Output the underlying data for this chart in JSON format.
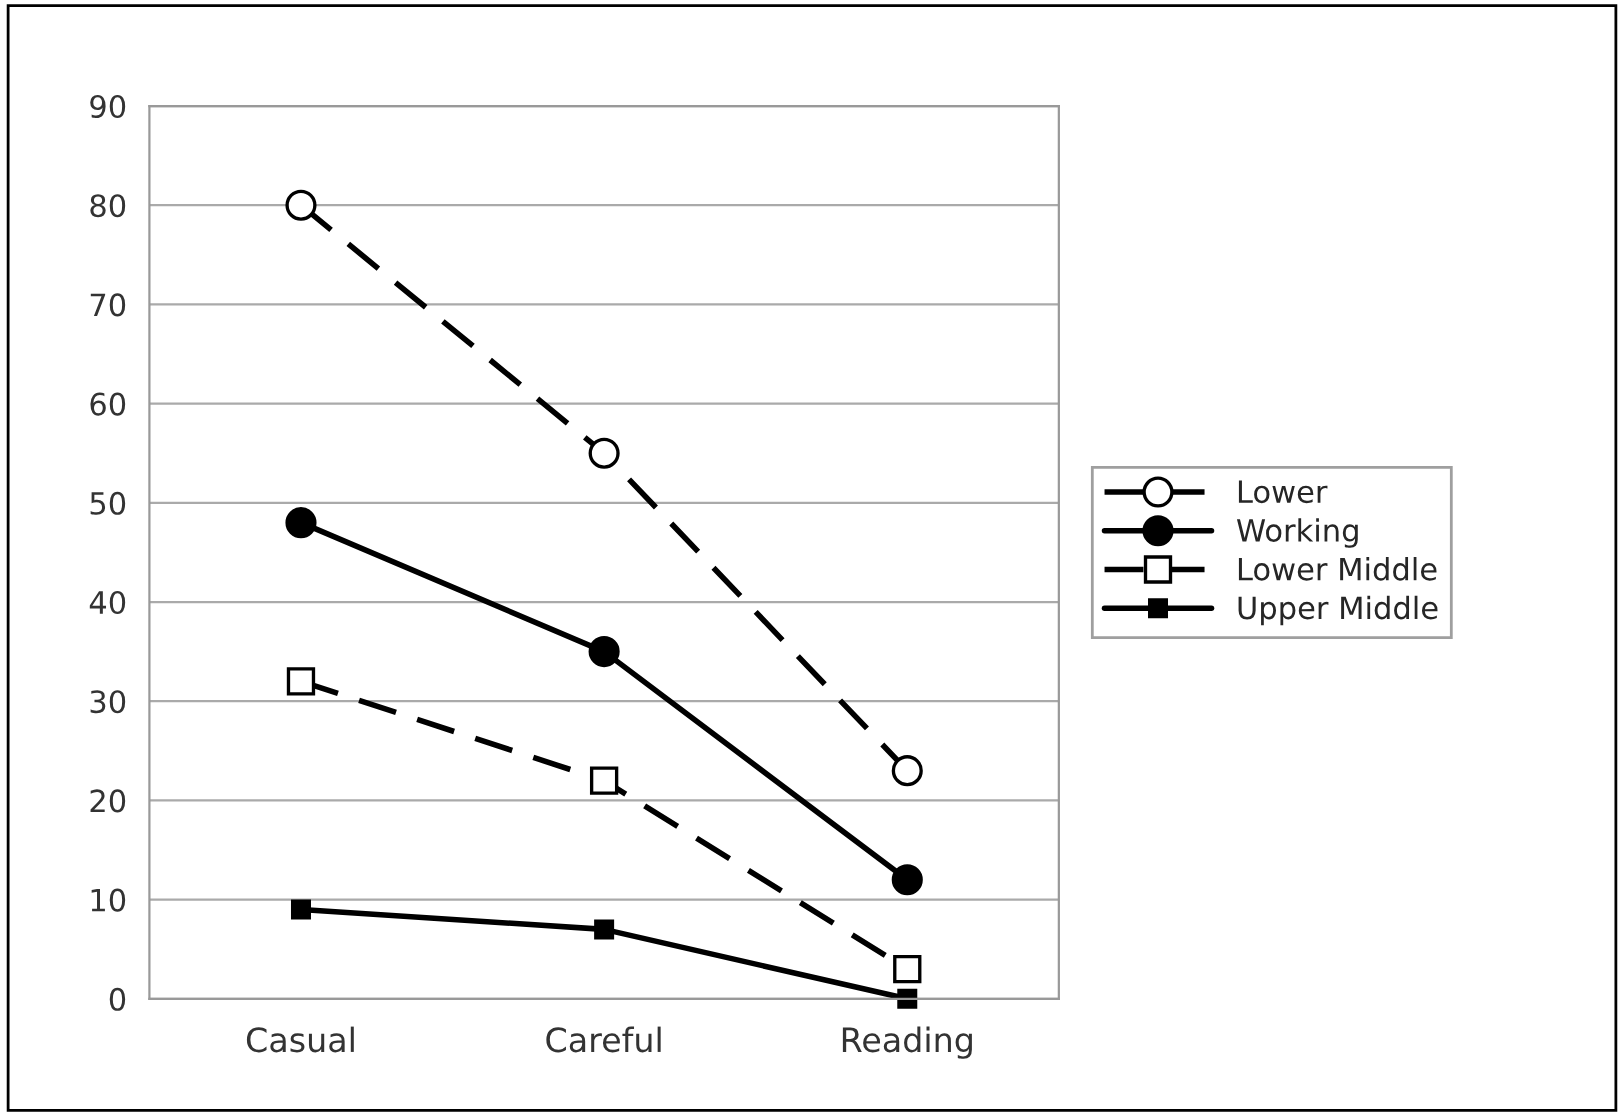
{
  "chart_data": {
    "type": "line",
    "categories": [
      "Casual",
      "Careful",
      "Reading"
    ],
    "series": [
      {
        "name": "Lower",
        "color": "#000000",
        "values": [
          80,
          55,
          23
        ],
        "marker": "circle",
        "line_style": "dashed"
      },
      {
        "name": "Working",
        "color": "#000000",
        "values": [
          48,
          35,
          12
        ],
        "marker": "circle",
        "line_style": "solid"
      },
      {
        "name": "Lower Middle",
        "color": "#000000",
        "values": [
          32,
          22,
          3
        ],
        "marker": "square",
        "line_style": "dashed"
      },
      {
        "name": "Upper Middle",
        "color": "#000000",
        "values": [
          9,
          7,
          0
        ],
        "marker": "square",
        "line_style": "solid"
      }
    ],
    "ylim": [
      0,
      90
    ],
    "yticks": [
      0,
      10,
      20,
      30,
      40,
      50,
      60,
      70,
      80,
      90
    ],
    "grid": "y",
    "legend": "right"
  }
}
